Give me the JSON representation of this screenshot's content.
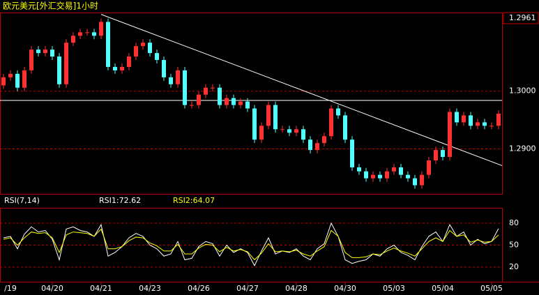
{
  "chart_data": [
    {
      "type": "candlestick",
      "title": "欧元美元[外汇交易]1小时",
      "last_price_label": "1.2961",
      "up_color": "#ff3232",
      "down_color": "#54ffff",
      "grid": true,
      "ylim": [
        1.2822,
        1.3135
      ],
      "yticks": [
        {
          "value": 1.29,
          "label": "1.2900"
        },
        {
          "value": 1.3,
          "label": "1.3000"
        }
      ],
      "hline": 1.2984,
      "trendline": {
        "x": [
          14,
          71.5
        ],
        "y": [
          1.3133,
          1.2871
        ]
      },
      "categories": [
        null,
        "/19",
        null,
        null,
        null,
        null,
        null,
        "04/20",
        null,
        null,
        null,
        null,
        null,
        null,
        "04/21",
        null,
        null,
        null,
        null,
        null,
        null,
        "04/23",
        null,
        null,
        null,
        null,
        null,
        null,
        "04/26",
        null,
        null,
        null,
        null,
        null,
        null,
        "04/27",
        null,
        null,
        null,
        null,
        null,
        null,
        "04/28",
        null,
        null,
        null,
        null,
        null,
        null,
        "04/30",
        null,
        null,
        null,
        null,
        null,
        null,
        "05/03",
        null,
        null,
        null,
        null,
        null,
        null,
        "05/04",
        null,
        null,
        null,
        null,
        null,
        null,
        "05/05",
        null
      ],
      "open": [
        1.301,
        1.3024,
        1.303,
        1.3006,
        1.3036,
        1.3072,
        1.3066,
        1.3072,
        1.306,
        1.3012,
        1.3084,
        1.3096,
        1.3102,
        1.3102,
        1.3096,
        1.312,
        1.3042,
        1.3036,
        1.3042,
        1.306,
        1.3078,
        1.3084,
        1.3066,
        1.3054,
        1.3024,
        1.3012,
        1.3036,
        1.2976,
        1.2976,
        1.2994,
        1.3006,
        1.3006,
        1.2976,
        1.2988,
        1.2976,
        1.2982,
        1.297,
        1.2916,
        1.294,
        1.2976,
        1.2934,
        1.2934,
        1.2928,
        1.2934,
        1.2916,
        1.2898,
        1.291,
        1.2922,
        1.297,
        1.2958,
        1.2916,
        1.2868,
        1.2861,
        1.2849,
        1.2855,
        1.2849,
        1.2861,
        1.2868,
        1.2855,
        1.2849,
        1.2837,
        1.2855,
        1.288,
        1.2898,
        1.2886,
        1.2964,
        1.2946,
        1.2958,
        1.294,
        1.2946,
        1.294,
        1.294
      ],
      "high": [
        1.303,
        1.3036,
        1.3036,
        1.3042,
        1.3078,
        1.3078,
        1.3078,
        1.3078,
        1.3066,
        1.309,
        1.3102,
        1.3108,
        1.3108,
        1.3108,
        1.3126,
        1.3126,
        1.3048,
        1.3048,
        1.3066,
        1.3084,
        1.309,
        1.309,
        1.3072,
        1.306,
        1.303,
        1.3042,
        1.3042,
        1.2982,
        1.3,
        1.3012,
        1.3012,
        1.3012,
        1.2994,
        1.2994,
        1.2988,
        1.2988,
        1.2976,
        1.2946,
        1.2982,
        1.2982,
        1.294,
        1.294,
        1.294,
        1.294,
        1.2922,
        1.2916,
        1.2928,
        1.2976,
        1.2976,
        1.2964,
        1.2922,
        1.2874,
        1.2867,
        1.2861,
        1.2861,
        1.2867,
        1.2874,
        1.2874,
        1.2861,
        1.2855,
        1.2861,
        1.2886,
        1.2904,
        1.2904,
        1.297,
        1.297,
        1.2964,
        1.2964,
        1.2952,
        1.2952,
        1.2946,
        1.2967
      ],
      "low": [
        1.3004,
        1.3018,
        1.3,
        1.3,
        1.303,
        1.306,
        1.306,
        1.3054,
        1.3006,
        1.3006,
        1.3078,
        1.309,
        1.3096,
        1.309,
        1.309,
        1.3036,
        1.303,
        1.303,
        1.3036,
        1.3054,
        1.3072,
        1.306,
        1.3048,
        1.3018,
        1.3006,
        1.3006,
        1.297,
        1.297,
        1.297,
        1.2988,
        1.3,
        1.297,
        1.297,
        1.297,
        1.297,
        1.2964,
        1.291,
        1.291,
        1.2934,
        1.2928,
        1.2928,
        1.2922,
        1.2922,
        1.291,
        1.2892,
        1.2892,
        1.2904,
        1.2916,
        1.2952,
        1.291,
        1.2862,
        1.2855,
        1.2843,
        1.2843,
        1.2843,
        1.2843,
        1.2855,
        1.2849,
        1.2843,
        1.2831,
        1.2831,
        1.2849,
        1.2874,
        1.288,
        1.288,
        1.294,
        1.294,
        1.2934,
        1.2934,
        1.2934,
        1.2934,
        1.2934
      ],
      "close": [
        1.3024,
        1.303,
        1.3006,
        1.3036,
        1.3072,
        1.3066,
        1.3072,
        1.306,
        1.3012,
        1.3084,
        1.3096,
        1.3102,
        1.3102,
        1.3096,
        1.312,
        1.3042,
        1.3036,
        1.3042,
        1.306,
        1.3078,
        1.3084,
        1.3066,
        1.3054,
        1.3024,
        1.3012,
        1.3036,
        1.2976,
        1.2976,
        1.2994,
        1.3006,
        1.3006,
        1.2976,
        1.2988,
        1.2976,
        1.2982,
        1.297,
        1.2916,
        1.294,
        1.2976,
        1.2934,
        1.2934,
        1.2928,
        1.2934,
        1.2916,
        1.2898,
        1.291,
        1.2922,
        1.297,
        1.2958,
        1.2916,
        1.2868,
        1.2861,
        1.2849,
        1.2855,
        1.2849,
        1.2861,
        1.2868,
        1.2855,
        1.2849,
        1.2837,
        1.2855,
        1.288,
        1.2898,
        1.2886,
        1.2964,
        1.2946,
        1.2958,
        1.294,
        1.2946,
        1.294,
        1.294,
        1.2961
      ]
    },
    {
      "type": "line",
      "indicator_label": "RSI(7,14)",
      "ylim": [
        0,
        100
      ],
      "yticks": [
        20,
        50,
        80
      ],
      "grid": true,
      "series": [
        {
          "name": "RSI1:72.62",
          "color": "#ffffff",
          "values": [
            60,
            62,
            45,
            65,
            75,
            68,
            70,
            58,
            30,
            72,
            75,
            70,
            68,
            62,
            78,
            35,
            40,
            48,
            60,
            66,
            62,
            50,
            45,
            35,
            38,
            55,
            30,
            32,
            48,
            55,
            52,
            35,
            50,
            40,
            45,
            40,
            22,
            42,
            60,
            38,
            42,
            40,
            45,
            35,
            30,
            45,
            52,
            80,
            62,
            30,
            25,
            28,
            30,
            38,
            35,
            45,
            50,
            40,
            36,
            30,
            48,
            62,
            68,
            55,
            78,
            62,
            68,
            50,
            58,
            52,
            55,
            72.62
          ]
        },
        {
          "name": "RSI2:64.07",
          "color": "#ffff00",
          "values": [
            58,
            60,
            50,
            60,
            68,
            66,
            67,
            60,
            40,
            64,
            68,
            67,
            66,
            62,
            72,
            45,
            45,
            48,
            56,
            61,
            60,
            53,
            49,
            42,
            42,
            51,
            38,
            38,
            46,
            51,
            50,
            41,
            47,
            42,
            44,
            41,
            30,
            39,
            52,
            41,
            42,
            41,
            43,
            38,
            35,
            42,
            48,
            70,
            62,
            40,
            33,
            33,
            34,
            38,
            37,
            42,
            46,
            42,
            39,
            35,
            45,
            55,
            60,
            55,
            70,
            62,
            64,
            54,
            57,
            54,
            55,
            64.07
          ]
        }
      ]
    }
  ]
}
